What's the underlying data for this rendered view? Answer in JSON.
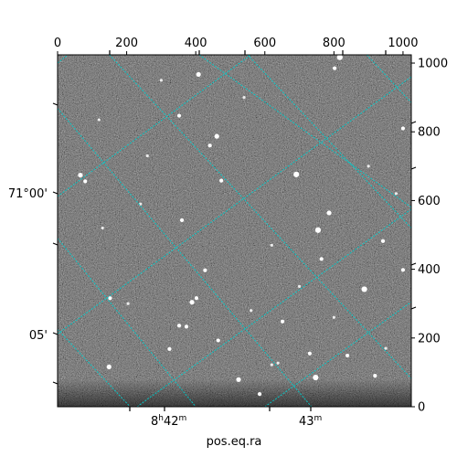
{
  "chart_data": {
    "type": "image",
    "title": "",
    "xlabel": "pos.eq.ra",
    "ylabel": "",
    "pixel_axes": {
      "x": {
        "range": [
          0,
          1024
        ],
        "ticks": [
          0,
          200,
          400,
          600,
          800,
          1000
        ],
        "position": "top"
      },
      "y": {
        "range": [
          0,
          1024
        ],
        "ticks": [
          0,
          200,
          400,
          600,
          800,
          1000
        ],
        "position": "right"
      }
    },
    "world_axes": {
      "ra": {
        "label": "pos.eq.ra",
        "ticks": [
          {
            "label": "8h42m",
            "h": "8",
            "m": "42"
          },
          {
            "label": "43m",
            "m": "43"
          }
        ]
      },
      "dec": {
        "ticks": [
          {
            "label": "71°00'"
          },
          {
            "label": "05'"
          }
        ]
      }
    },
    "grid": true,
    "grid_color": "#00cccc",
    "image_colormap": "gray",
    "stars": [
      {
        "x": 817,
        "y": 1017,
        "s": 5
      },
      {
        "x": 408,
        "y": 967,
        "s": 4
      },
      {
        "x": 352,
        "y": 847,
        "s": 3
      },
      {
        "x": 802,
        "y": 985,
        "s": 3
      },
      {
        "x": 461,
        "y": 787,
        "s": 4
      },
      {
        "x": 441,
        "y": 760,
        "s": 3
      },
      {
        "x": 66,
        "y": 674,
        "s": 4
      },
      {
        "x": 80,
        "y": 656,
        "s": 3
      },
      {
        "x": 691,
        "y": 676,
        "s": 5
      },
      {
        "x": 474,
        "y": 658,
        "s": 3
      },
      {
        "x": 1000,
        "y": 810,
        "s": 3
      },
      {
        "x": 786,
        "y": 564,
        "s": 4
      },
      {
        "x": 754,
        "y": 514,
        "s": 5
      },
      {
        "x": 360,
        "y": 543,
        "s": 3
      },
      {
        "x": 942,
        "y": 482,
        "s": 3
      },
      {
        "x": 764,
        "y": 430,
        "s": 3
      },
      {
        "x": 1000,
        "y": 398,
        "s": 3
      },
      {
        "x": 427,
        "y": 397,
        "s": 3
      },
      {
        "x": 888,
        "y": 342,
        "s": 5
      },
      {
        "x": 152,
        "y": 316,
        "s": 3
      },
      {
        "x": 402,
        "y": 316,
        "s": 3
      },
      {
        "x": 389,
        "y": 304,
        "s": 4
      },
      {
        "x": 352,
        "y": 236,
        "s": 3
      },
      {
        "x": 373,
        "y": 233,
        "s": 3
      },
      {
        "x": 651,
        "y": 248,
        "s": 3
      },
      {
        "x": 465,
        "y": 193,
        "s": 3
      },
      {
        "x": 324,
        "y": 168,
        "s": 3
      },
      {
        "x": 730,
        "y": 155,
        "s": 3
      },
      {
        "x": 839,
        "y": 149,
        "s": 3
      },
      {
        "x": 149,
        "y": 116,
        "s": 4
      },
      {
        "x": 747,
        "y": 85,
        "s": 5
      },
      {
        "x": 524,
        "y": 79,
        "s": 4
      },
      {
        "x": 919,
        "y": 90,
        "s": 3
      },
      {
        "x": 585,
        "y": 37,
        "s": 3
      },
      {
        "x": 638,
        "y": 127,
        "s": 2
      },
      {
        "x": 620,
        "y": 122,
        "s": 2
      },
      {
        "x": 204,
        "y": 300,
        "s": 2
      },
      {
        "x": 240,
        "y": 590,
        "s": 2
      },
      {
        "x": 120,
        "y": 835,
        "s": 2
      },
      {
        "x": 560,
        "y": 280,
        "s": 2
      },
      {
        "x": 900,
        "y": 700,
        "s": 2
      },
      {
        "x": 300,
        "y": 950,
        "s": 2
      },
      {
        "x": 950,
        "y": 170,
        "s": 2
      },
      {
        "x": 700,
        "y": 350,
        "s": 2
      },
      {
        "x": 260,
        "y": 730,
        "s": 2
      },
      {
        "x": 540,
        "y": 900,
        "s": 2
      },
      {
        "x": 800,
        "y": 260,
        "s": 2
      },
      {
        "x": 130,
        "y": 520,
        "s": 2
      },
      {
        "x": 980,
        "y": 620,
        "s": 2
      },
      {
        "x": 620,
        "y": 470,
        "s": 2
      }
    ]
  }
}
